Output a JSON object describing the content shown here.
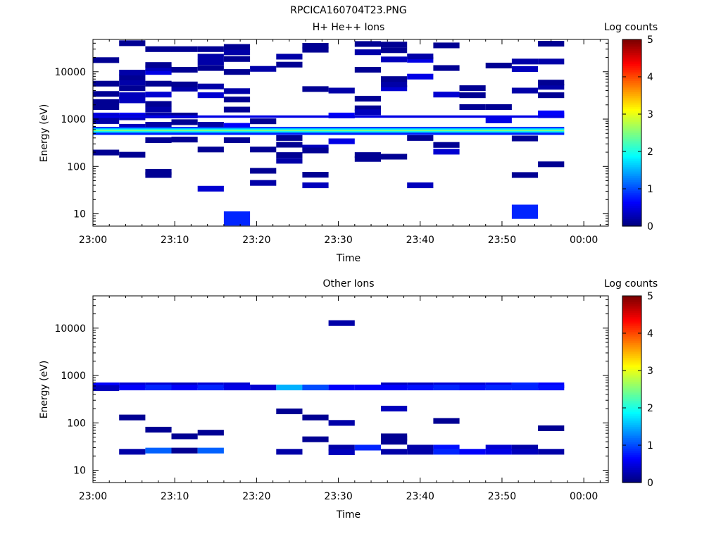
{
  "figure_title": "RPCICA160704T23.PNG",
  "colors": {
    "colormap": [
      "#00007f",
      "#0000ff",
      "#007fff",
      "#00ffff",
      "#7fff7f",
      "#ffff00",
      "#ff7f00",
      "#ff0000",
      "#7f0000"
    ]
  },
  "chart_data": [
    {
      "type": "heatmap",
      "title": "H+ He++ Ions",
      "xlabel": "Time",
      "ylabel": "Energy (eV)",
      "x_range_minutes": [
        0,
        63
      ],
      "y_range_ev": [
        5.5,
        48000
      ],
      "y_scale": "log",
      "x_ticks": [
        {
          "minute": 0,
          "label": "23:00"
        },
        {
          "minute": 10,
          "label": "23:10"
        },
        {
          "minute": 20,
          "label": "23:20"
        },
        {
          "minute": 30,
          "label": "23:30"
        },
        {
          "minute": 40,
          "label": "23:40"
        },
        {
          "minute": 50,
          "label": "23:50"
        },
        {
          "minute": 60,
          "label": "00:00"
        }
      ],
      "y_ticks": [
        {
          "value": 10,
          "label": "10"
        },
        {
          "value": 100,
          "label": "100"
        },
        {
          "value": 1000,
          "label": "1000"
        },
        {
          "value": 10000,
          "label": "10000"
        }
      ],
      "colorbar": {
        "label": "Log counts",
        "range": [
          0,
          5
        ],
        "ticks": [
          "0",
          "1",
          "2",
          "3",
          "4",
          "5"
        ]
      },
      "cells": [
        [
          0,
          1190,
          0.5
        ],
        [
          0,
          1090,
          0.3
        ],
        [
          0,
          910,
          0.2
        ],
        [
          0,
          1790,
          0.1
        ],
        [
          0,
          2290,
          0.1
        ],
        [
          0,
          3400,
          0.1
        ],
        [
          0,
          5600,
          0.1
        ],
        [
          0,
          17600,
          0.1
        ],
        [
          0,
          197,
          0.1
        ],
        [
          1,
          1190,
          0.6
        ],
        [
          1,
          1090,
          0.3
        ],
        [
          1,
          690,
          0.3
        ],
        [
          1,
          2490,
          0.3
        ],
        [
          1,
          3200,
          0.3
        ],
        [
          1,
          4490,
          0.1
        ],
        [
          1,
          5900,
          0.2
        ],
        [
          1,
          7600,
          0.1
        ],
        [
          1,
          9600,
          0.2
        ],
        [
          1,
          40000,
          0.1
        ],
        [
          1,
          177,
          0.1
        ],
        [
          2,
          1590,
          0.2
        ],
        [
          2,
          1190,
          0.2
        ],
        [
          2,
          2090,
          0.1
        ],
        [
          2,
          3300,
          0.4
        ],
        [
          2,
          5600,
          0.1
        ],
        [
          2,
          9900,
          0.5
        ],
        [
          2,
          11800,
          0.3
        ],
        [
          2,
          13900,
          0.1
        ],
        [
          2,
          30000,
          0.1
        ],
        [
          2,
          760,
          0.2
        ],
        [
          2,
          360,
          0.1
        ],
        [
          2,
          77,
          0.1
        ],
        [
          2,
          66,
          0.1
        ],
        [
          3,
          1190,
          0.1
        ],
        [
          3,
          4400,
          0.2
        ],
        [
          3,
          5400,
          0.1
        ],
        [
          3,
          11000,
          0.1
        ],
        [
          3,
          30000,
          0.1
        ],
        [
          3,
          860,
          0.1
        ],
        [
          3,
          370,
          0.1
        ],
        [
          4,
          3200,
          0.4
        ],
        [
          4,
          4890,
          0.2
        ],
        [
          4,
          12000,
          0.1
        ],
        [
          4,
          15900,
          0.2
        ],
        [
          4,
          20800,
          0.2
        ],
        [
          4,
          30000,
          0.1
        ],
        [
          4,
          760,
          0.2
        ],
        [
          4,
          228,
          0.1
        ],
        [
          4,
          34,
          0.4
        ],
        [
          5,
          1590,
          0.1
        ],
        [
          5,
          2590,
          0.1
        ],
        [
          5,
          3890,
          0.2
        ],
        [
          5,
          9900,
          0.1
        ],
        [
          5,
          18600,
          0.1
        ],
        [
          5,
          25700,
          0.2
        ],
        [
          5,
          33300,
          0.1
        ],
        [
          5,
          720,
          0.6
        ],
        [
          5,
          360,
          0.1
        ],
        [
          5,
          9,
          0.8
        ],
        [
          6,
          900,
          0.1
        ],
        [
          6,
          11500,
          0.2
        ],
        [
          6,
          228,
          0.1
        ],
        [
          6,
          81,
          0.1
        ],
        [
          6,
          45,
          0.2
        ],
        [
          7,
          14100,
          0.1
        ],
        [
          7,
          20800,
          0.2
        ],
        [
          7,
          400,
          0.1
        ],
        [
          7,
          288,
          0.1
        ],
        [
          7,
          174,
          0.1
        ],
        [
          7,
          132,
          0.2
        ],
        [
          8,
          4300,
          0.1
        ],
        [
          8,
          29200,
          0.1
        ],
        [
          8,
          35200,
          0.1
        ],
        [
          8,
          250,
          0.3
        ],
        [
          8,
          218,
          0.1
        ],
        [
          8,
          67,
          0.1
        ],
        [
          8,
          40,
          0.3
        ],
        [
          9,
          1190,
          0.6
        ],
        [
          9,
          4000,
          0.2
        ],
        [
          9,
          340,
          0.5
        ],
        [
          10,
          1690,
          0.1
        ],
        [
          10,
          1390,
          0.3
        ],
        [
          10,
          2690,
          0.1
        ],
        [
          10,
          11000,
          0.1
        ],
        [
          10,
          25800,
          0.2
        ],
        [
          10,
          38500,
          0.1
        ],
        [
          10,
          174,
          0.1
        ],
        [
          10,
          144,
          0.1
        ],
        [
          11,
          4490,
          0.4
        ],
        [
          11,
          5400,
          0.2
        ],
        [
          11,
          7000,
          0.1
        ],
        [
          11,
          18200,
          0.3
        ],
        [
          11,
          28500,
          0.1
        ],
        [
          11,
          37500,
          0.1
        ],
        [
          11,
          161,
          0.1
        ],
        [
          12,
          7900,
          0.5
        ],
        [
          12,
          17900,
          0.5
        ],
        [
          12,
          21000,
          0.2
        ],
        [
          12,
          400,
          0.1
        ],
        [
          12,
          40,
          0.3
        ],
        [
          13,
          3300,
          0.4
        ],
        [
          13,
          12000,
          0.1
        ],
        [
          13,
          36000,
          0.1
        ],
        [
          13,
          285,
          0.1
        ],
        [
          13,
          205,
          0.4
        ],
        [
          14,
          3200,
          0.1
        ],
        [
          14,
          4500,
          0.1
        ],
        [
          14,
          1800,
          0.1
        ],
        [
          15,
          1800,
          0.1
        ],
        [
          15,
          940,
          0.5
        ],
        [
          15,
          13500,
          0.1
        ],
        [
          16,
          4000,
          0.2
        ],
        [
          16,
          11400,
          0.3
        ],
        [
          16,
          16400,
          0.2
        ],
        [
          16,
          66,
          0.1
        ],
        [
          16,
          390,
          0.1
        ],
        [
          16,
          12.5,
          0.8
        ],
        [
          17,
          1320,
          0.6
        ],
        [
          17,
          1210,
          0.6
        ],
        [
          17,
          3200,
          0.1
        ],
        [
          17,
          4800,
          0.2
        ],
        [
          17,
          5900,
          0.1
        ],
        [
          17,
          16400,
          0.2
        ],
        [
          17,
          39000,
          0.1
        ],
        [
          17,
          111,
          0.1
        ]
      ],
      "bands": [
        {
          "ev": 1130,
          "value": 0.5
        },
        {
          "ev": 650,
          "value": 0.9
        },
        {
          "ev": 600,
          "value": 1.8
        },
        {
          "ev": 560,
          "value": 2.5
        },
        {
          "ev": 525,
          "value": 1.8
        },
        {
          "ev": 490,
          "value": 0.8
        }
      ]
    },
    {
      "type": "heatmap",
      "title": "Other Ions",
      "xlabel": "Time",
      "ylabel": "Energy (eV)",
      "x_range_minutes": [
        0,
        63
      ],
      "y_range_ev": [
        5.5,
        48000
      ],
      "y_scale": "log",
      "x_ticks": [
        {
          "minute": 0,
          "label": "23:00"
        },
        {
          "minute": 10,
          "label": "23:10"
        },
        {
          "minute": 20,
          "label": "23:20"
        },
        {
          "minute": 30,
          "label": "23:30"
        },
        {
          "minute": 40,
          "label": "23:40"
        },
        {
          "minute": 50,
          "label": "23:50"
        },
        {
          "minute": 60,
          "label": "00:00"
        }
      ],
      "y_ticks": [
        {
          "value": 10,
          "label": "10"
        },
        {
          "value": 100,
          "label": "100"
        },
        {
          "value": 1000,
          "label": "1000"
        },
        {
          "value": 10000,
          "label": "10000"
        }
      ],
      "colorbar": {
        "label": "Log counts",
        "range": [
          0,
          5
        ],
        "ticks": [
          "0",
          "1",
          "2",
          "3",
          "4",
          "5"
        ]
      },
      "cells": [
        [
          0,
          620,
          0.6
        ],
        [
          0,
          540,
          0.3
        ],
        [
          1,
          620,
          0.4
        ],
        [
          1,
          560,
          0.6
        ],
        [
          1,
          130,
          0.1
        ],
        [
          1,
          24.5,
          0.2
        ],
        [
          2,
          620,
          0.4
        ],
        [
          2,
          560,
          0.8
        ],
        [
          2,
          72,
          0.1
        ],
        [
          2,
          26,
          1.1
        ],
        [
          3,
          620,
          0.3
        ],
        [
          3,
          560,
          0.6
        ],
        [
          3,
          52,
          0.1
        ],
        [
          3,
          26,
          0.1
        ],
        [
          4,
          620,
          0.4
        ],
        [
          4,
          560,
          0.8
        ],
        [
          4,
          62,
          0.1
        ],
        [
          4,
          26,
          1.1
        ],
        [
          5,
          620,
          0.4
        ],
        [
          5,
          560,
          0.5
        ],
        [
          6,
          560,
          0.4
        ],
        [
          7,
          560,
          1.5
        ],
        [
          7,
          175,
          0.1
        ],
        [
          7,
          24.5,
          0.2
        ],
        [
          8,
          560,
          1.0
        ],
        [
          8,
          130,
          0.1
        ],
        [
          8,
          45,
          0.1
        ],
        [
          9,
          560,
          0.6
        ],
        [
          9,
          100,
          0.2
        ],
        [
          9,
          12800,
          0.2
        ],
        [
          9,
          30,
          0.2
        ],
        [
          9,
          24,
          0.3
        ],
        [
          10,
          560,
          0.6
        ],
        [
          10,
          30,
          0.8
        ],
        [
          11,
          620,
          0.3
        ],
        [
          11,
          560,
          0.6
        ],
        [
          11,
          200,
          0.3
        ],
        [
          11,
          52,
          0.1
        ],
        [
          11,
          47,
          0.1
        ],
        [
          11,
          40,
          0.1
        ],
        [
          11,
          24.5,
          0.2
        ],
        [
          12,
          620,
          0.3
        ],
        [
          12,
          560,
          0.7
        ],
        [
          12,
          30,
          0.2
        ],
        [
          12,
          24.5,
          0.2
        ],
        [
          13,
          620,
          0.4
        ],
        [
          13,
          560,
          0.8
        ],
        [
          13,
          110,
          0.1
        ],
        [
          13,
          30,
          0.7
        ],
        [
          13,
          24.5,
          0.8
        ],
        [
          14,
          620,
          0.4
        ],
        [
          14,
          560,
          0.7
        ],
        [
          14,
          24.5,
          0.6
        ],
        [
          15,
          620,
          0.5
        ],
        [
          15,
          560,
          0.8
        ],
        [
          15,
          30,
          0.4
        ],
        [
          15,
          24.5,
          0.5
        ],
        [
          16,
          620,
          0.8
        ],
        [
          16,
          560,
          0.8
        ],
        [
          16,
          30,
          0.2
        ],
        [
          16,
          24.5,
          0.3
        ],
        [
          17,
          620,
          0.6
        ],
        [
          17,
          560,
          0.7
        ],
        [
          17,
          77,
          0.1
        ],
        [
          17,
          24.5,
          0.2
        ]
      ],
      "bands": []
    }
  ]
}
